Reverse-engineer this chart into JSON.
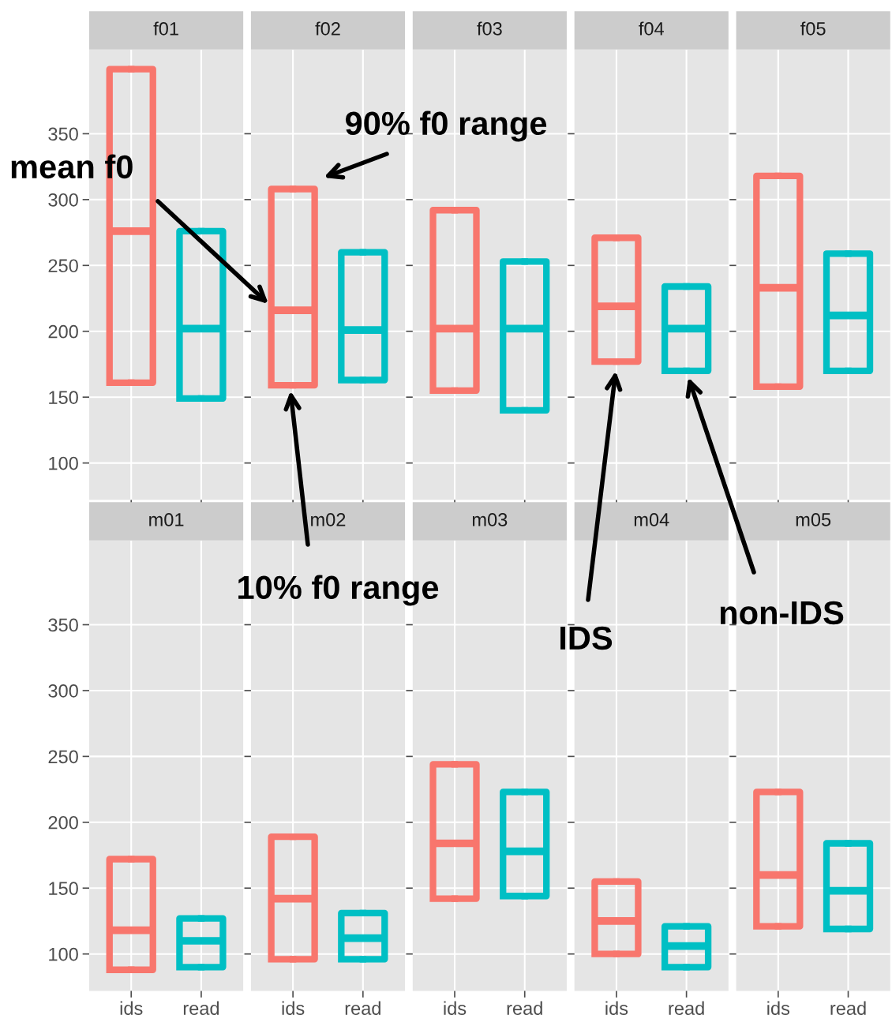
{
  "chart_data": [
    {
      "type": "box",
      "title": "f01",
      "categories": [
        "ids",
        "read"
      ],
      "ylim": [
        72,
        414
      ],
      "yticks": [
        100,
        150,
        200,
        250,
        300,
        350
      ],
      "grid": true,
      "tick_labels": "y",
      "colors": [
        "#f8766d",
        "#00bfc4"
      ],
      "boxes": [
        {
          "low": 161,
          "q1": 161,
          "median": 276,
          "q3": 399,
          "high": 399
        },
        {
          "low": 149,
          "q1": 149,
          "median": 202,
          "q3": 276,
          "high": 276
        }
      ]
    },
    {
      "type": "box",
      "title": "f02",
      "categories": [
        "ids",
        "read"
      ],
      "ylim": [
        72,
        414
      ],
      "yticks": [
        100,
        150,
        200,
        250,
        300,
        350
      ],
      "grid": true,
      "tick_labels": false,
      "colors": [
        "#f8766d",
        "#00bfc4"
      ],
      "boxes": [
        {
          "low": 159,
          "q1": 159,
          "median": 216,
          "q3": 308,
          "high": 308
        },
        {
          "low": 163,
          "q1": 163,
          "median": 201,
          "q3": 260,
          "high": 260
        }
      ],
      "annotations": [
        {
          "text": "90% f0 range",
          "x": "ids",
          "y": 308
        },
        "mean f0",
        "10% f0 range"
      ]
    },
    {
      "type": "box",
      "title": "f03",
      "categories": [
        "ids",
        "read"
      ],
      "ylim": [
        72,
        414
      ],
      "yticks": [
        100,
        150,
        200,
        250,
        300,
        350
      ],
      "grid": true,
      "tick_labels": false,
      "colors": [
        "#f8766d",
        "#00bfc4"
      ],
      "boxes": [
        {
          "low": 155,
          "q1": 155,
          "median": 202,
          "q3": 292,
          "high": 292
        },
        {
          "low": 140,
          "q1": 140,
          "median": 202,
          "q3": 253,
          "high": 253
        }
      ]
    },
    {
      "type": "box",
      "title": "f04",
      "categories": [
        "ids",
        "read"
      ],
      "ylim": [
        72,
        414
      ],
      "yticks": [
        100,
        150,
        200,
        250,
        300,
        350
      ],
      "grid": true,
      "tick_labels": false,
      "colors": [
        "#f8766d",
        "#00bfc4"
      ],
      "boxes": [
        {
          "low": 177,
          "q1": 177,
          "median": 219,
          "q3": 271,
          "high": 271
        },
        {
          "low": 170,
          "q1": 170,
          "median": 202,
          "q3": 234,
          "high": 234
        }
      ],
      "annotations": [
        "IDS",
        "non-IDS"
      ]
    },
    {
      "type": "box",
      "title": "f05",
      "categories": [
        "ids",
        "read"
      ],
      "ylim": [
        72,
        414
      ],
      "yticks": [
        100,
        150,
        200,
        250,
        300,
        350
      ],
      "grid": true,
      "tick_labels": false,
      "colors": [
        "#f8766d",
        "#00bfc4"
      ],
      "boxes": [
        {
          "low": 158,
          "q1": 158,
          "median": 233,
          "q3": 318,
          "high": 318
        },
        {
          "low": 170,
          "q1": 170,
          "median": 212,
          "q3": 259,
          "high": 259
        }
      ]
    },
    {
      "type": "box",
      "title": "m01",
      "categories": [
        "ids",
        "read"
      ],
      "ylim": [
        72,
        414
      ],
      "yticks": [
        100,
        150,
        200,
        250,
        300,
        350
      ],
      "grid": true,
      "colors": [
        "#f8766d",
        "#00bfc4"
      ],
      "boxes": [
        {
          "low": 88,
          "q1": 88,
          "median": 118,
          "q3": 172,
          "high": 172
        },
        {
          "low": 90,
          "q1": 90,
          "median": 110,
          "q3": 127,
          "high": 127
        }
      ]
    },
    {
      "type": "box",
      "title": "m02",
      "categories": [
        "ids",
        "read"
      ],
      "ylim": [
        72,
        414
      ],
      "yticks": [
        100,
        150,
        200,
        250,
        300,
        350
      ],
      "grid": true,
      "tick_labels": "x",
      "colors": [
        "#f8766d",
        "#00bfc4"
      ],
      "boxes": [
        {
          "low": 96,
          "q1": 96,
          "median": 142,
          "q3": 189,
          "high": 189
        },
        {
          "low": 96,
          "q1": 96,
          "median": 112,
          "q3": 131,
          "high": 131
        }
      ]
    },
    {
      "type": "box",
      "title": "m03",
      "categories": [
        "ids",
        "read"
      ],
      "ylim": [
        72,
        414
      ],
      "yticks": [
        100,
        150,
        200,
        250,
        300,
        350
      ],
      "grid": true,
      "tick_labels": "x",
      "colors": [
        "#f8766d",
        "#00bfc4"
      ],
      "boxes": [
        {
          "low": 142,
          "q1": 142,
          "median": 184,
          "q3": 244,
          "high": 244
        },
        {
          "low": 144,
          "q1": 144,
          "median": 178,
          "q3": 223,
          "high": 223
        }
      ]
    },
    {
      "type": "box",
      "title": "m04",
      "categories": [
        "ids",
        "read"
      ],
      "ylim": [
        72,
        414
      ],
      "yticks": [
        100,
        150,
        200,
        250,
        300,
        350
      ],
      "grid": true,
      "tick_labels": "x",
      "colors": [
        "#f8766d",
        "#00bfc4"
      ],
      "boxes": [
        {
          "low": 100,
          "q1": 100,
          "median": 125,
          "q3": 155,
          "high": 155
        },
        {
          "low": 90,
          "q1": 90,
          "median": 106,
          "q3": 121,
          "high": 121
        }
      ]
    },
    {
      "type": "box",
      "title": "m05",
      "categories": [
        "ids",
        "read"
      ],
      "ylim": [
        72,
        414
      ],
      "yticks": [
        100,
        150,
        200,
        250,
        300,
        350
      ],
      "grid": true,
      "tick_labels": "x",
      "colors": [
        "#f8766d",
        "#00bfc4"
      ],
      "boxes": [
        {
          "low": 121,
          "q1": 121,
          "median": 160,
          "q3": 223,
          "high": 223
        },
        {
          "low": 119,
          "q1": 119,
          "median": 148,
          "q3": 184,
          "high": 184
        }
      ]
    }
  ]
}
